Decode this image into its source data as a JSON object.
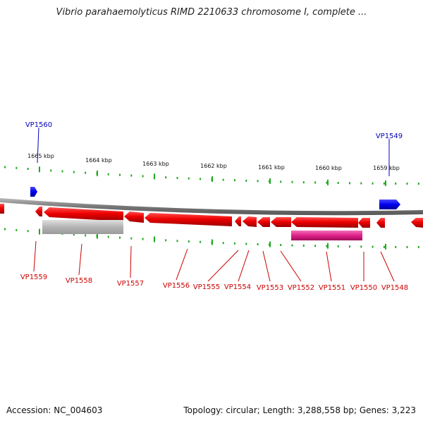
{
  "title": "Vibrio parahaemolyticus RIMD 2210633 chromosome I, complete ...",
  "footer": {
    "accession": "Accession: NC_004603",
    "topology": "Topology: circular; Length: 3,288,558 bp; Genes: 3,223"
  },
  "colors": {
    "forward_gene": "#0000ee",
    "reverse_gene": "#ee0000",
    "gray_feature": "#b4b4b4",
    "pink_feature": "#e0208a",
    "ticks": "#22aa22",
    "backbone": "#888888",
    "reverse_label": "#cc0000",
    "forward_label": "#0000bb"
  },
  "scale_labels": [
    "1665 kbp",
    "1664 kbp",
    "1663 kbp",
    "1662 kbp",
    "1661 kbp",
    "1660 kbp",
    "1659 kbp"
  ],
  "forward_gene_labels": [
    "VP1560",
    "VP1549"
  ],
  "reverse_gene_labels": [
    "VP1559",
    "VP1558",
    "VP1557",
    "VP1556",
    "VP1555",
    "VP1554",
    "VP1553",
    "VP1552",
    "VP1551",
    "VP1550",
    "VP1548"
  ]
}
